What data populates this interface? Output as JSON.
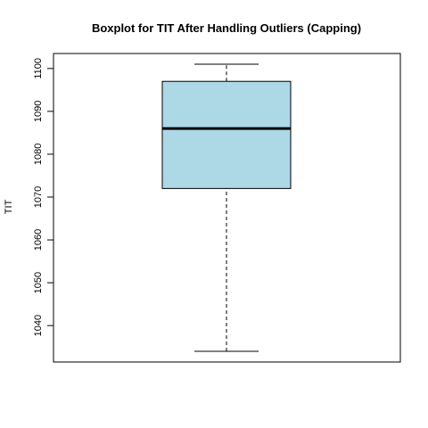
{
  "chart_data": {
    "type": "boxplot",
    "title": "Boxplot for TIT After Handling Outliers (Capping)",
    "xlabel": "",
    "ylabel": "TIT",
    "ylim": [
      1031.5,
      1103.5
    ],
    "yticks": [
      1040,
      1050,
      1060,
      1070,
      1080,
      1090,
      1100
    ],
    "series": [
      {
        "whisker_low": 1034,
        "q1": 1072,
        "median": 1086,
        "q3": 1097,
        "whisker_high": 1101
      }
    ],
    "grid": false,
    "colors": {
      "box_fill": "#ADD8E6",
      "box_stroke": "#000000",
      "frame": "#000000"
    }
  }
}
